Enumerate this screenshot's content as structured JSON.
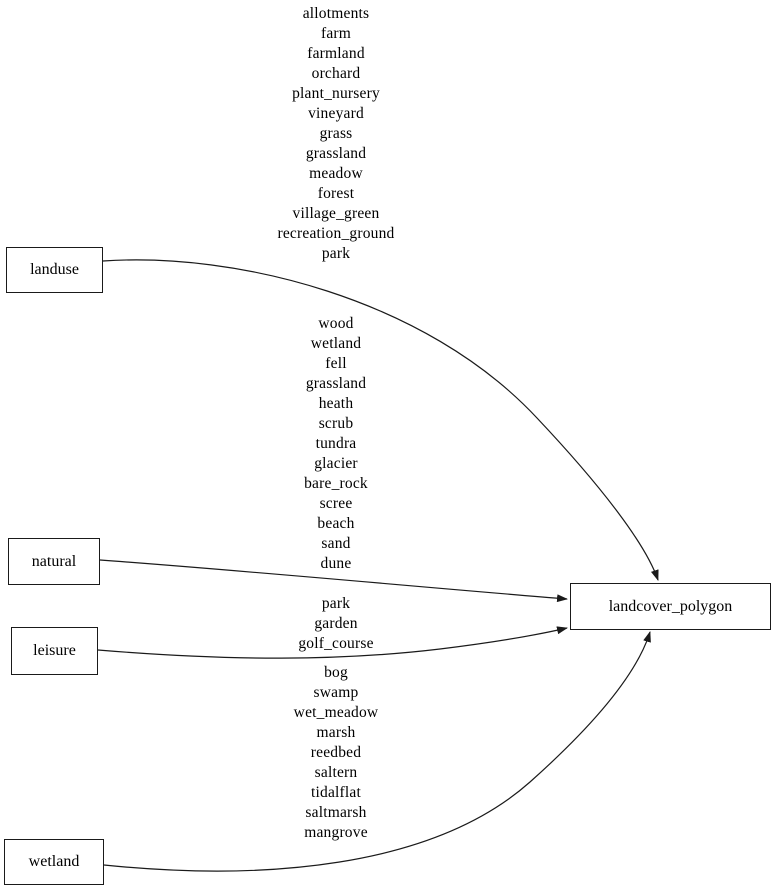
{
  "diagram": {
    "type": "graphviz-digraph",
    "background_color": "#ffffff",
    "edge_color": "#1a1a1a",
    "node_border_color": "#1a1a1a",
    "text_color": "#000000"
  },
  "nodes": [
    {
      "id": "landuse",
      "label": "landuse"
    },
    {
      "id": "natural",
      "label": "natural"
    },
    {
      "id": "leisure",
      "label": "leisure"
    },
    {
      "id": "wetland",
      "label": "wetland"
    },
    {
      "id": "landcover_polygon",
      "label": "landcover_polygon"
    }
  ],
  "edges": [
    {
      "from": "landuse",
      "to": "landcover_polygon",
      "labels": [
        "allotments",
        "farm",
        "farmland",
        "orchard",
        "plant_nursery",
        "vineyard",
        "grass",
        "grassland",
        "meadow",
        "forest",
        "village_green",
        "recreation_ground",
        "park"
      ]
    },
    {
      "from": "natural",
      "to": "landcover_polygon",
      "labels": [
        "wood",
        "wetland",
        "fell",
        "grassland",
        "heath",
        "scrub",
        "tundra",
        "glacier",
        "bare_rock",
        "scree",
        "beach",
        "sand",
        "dune"
      ]
    },
    {
      "from": "leisure",
      "to": "landcover_polygon",
      "labels": [
        "park",
        "garden",
        "golf_course"
      ]
    },
    {
      "from": "wetland",
      "to": "landcover_polygon",
      "labels": [
        "bog",
        "swamp",
        "wet_meadow",
        "marsh",
        "reedbed",
        "saltern",
        "tidalflat",
        "saltmarsh",
        "mangrove"
      ]
    }
  ]
}
